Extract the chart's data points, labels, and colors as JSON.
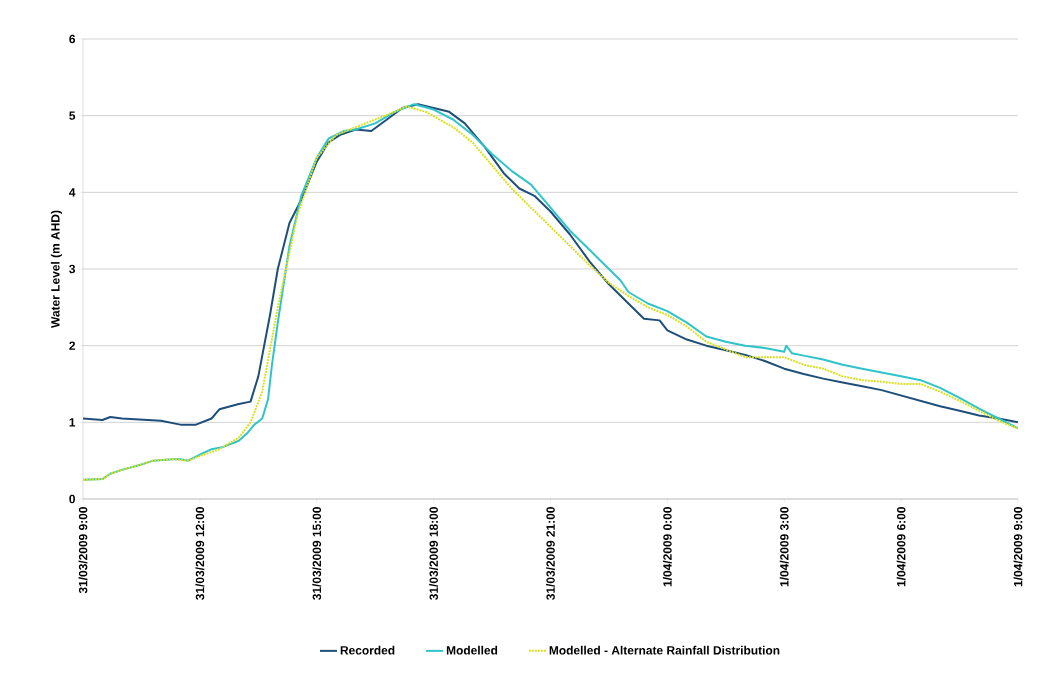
{
  "chart_data": {
    "type": "line",
    "ylabel": "Water Level (m AHD)",
    "xlim": [
      "2009-03-31T09:00",
      "2009-04-01T09:00"
    ],
    "xticks": [
      {
        "value": "2009-03-31T09:00",
        "label": "31/03/2009 9:00"
      },
      {
        "value": "2009-03-31T12:00",
        "label": "31/03/2009 12:00"
      },
      {
        "value": "2009-03-31T15:00",
        "label": "31/03/2009 15:00"
      },
      {
        "value": "2009-03-31T18:00",
        "label": "31/03/2009 18:00"
      },
      {
        "value": "2009-03-31T21:00",
        "label": "31/03/2009 21:00"
      },
      {
        "value": "2009-04-01T00:00",
        "label": "1/04/2009 0:00"
      },
      {
        "value": "2009-04-01T03:00",
        "label": "1/04/2009 3:00"
      },
      {
        "value": "2009-04-01T06:00",
        "label": "1/04/2009 6:00"
      },
      {
        "value": "2009-04-01T09:00",
        "label": "1/04/2009 9:00"
      }
    ],
    "ylim": [
      0,
      6
    ],
    "yticks": [
      0,
      1,
      2,
      3,
      4,
      5,
      6
    ],
    "grid": "y",
    "legend": "bottom",
    "series": [
      {
        "name": "Recorded",
        "color": "#1f4e79",
        "line_style": "solid",
        "x": [
          "2009-03-31T09:00",
          "2009-03-31T09:30",
          "2009-03-31T09:42",
          "2009-03-31T10:00",
          "2009-03-31T11:00",
          "2009-03-31T11:30",
          "2009-03-31T11:54",
          "2009-03-31T12:18",
          "2009-03-31T12:30",
          "2009-03-31T13:00",
          "2009-03-31T13:18",
          "2009-03-31T13:30",
          "2009-03-31T13:48",
          "2009-03-31T14:00",
          "2009-03-31T14:18",
          "2009-03-31T14:36",
          "2009-03-31T15:00",
          "2009-03-31T15:18",
          "2009-03-31T15:36",
          "2009-03-31T16:00",
          "2009-03-31T16:24",
          "2009-03-31T16:48",
          "2009-03-31T17:12",
          "2009-03-31T17:36",
          "2009-03-31T18:00",
          "2009-03-31T18:24",
          "2009-03-31T18:48",
          "2009-03-31T19:18",
          "2009-03-31T19:48",
          "2009-03-31T20:12",
          "2009-03-31T20:36",
          "2009-03-31T21:00",
          "2009-03-31T21:30",
          "2009-03-31T22:00",
          "2009-03-31T22:30",
          "2009-03-31T23:00",
          "2009-03-31T23:24",
          "2009-03-31T23:48",
          "2009-04-01T00:00",
          "2009-04-01T00:30",
          "2009-04-01T01:00",
          "2009-04-01T01:30",
          "2009-04-01T02:00",
          "2009-04-01T02:30",
          "2009-04-01T03:00",
          "2009-04-01T03:30",
          "2009-04-01T04:00",
          "2009-04-01T04:30",
          "2009-04-01T05:00",
          "2009-04-01T05:30",
          "2009-04-01T06:00",
          "2009-04-01T06:30",
          "2009-04-01T07:00",
          "2009-04-01T07:30",
          "2009-04-01T08:00",
          "2009-04-01T08:30",
          "2009-04-01T09:00"
        ],
        "values": [
          1.05,
          1.03,
          1.07,
          1.05,
          1.02,
          0.97,
          0.97,
          1.05,
          1.17,
          1.24,
          1.27,
          1.6,
          2.4,
          3.0,
          3.6,
          3.9,
          4.4,
          4.65,
          4.75,
          4.82,
          4.8,
          4.95,
          5.1,
          5.15,
          5.1,
          5.05,
          4.9,
          4.6,
          4.25,
          4.05,
          3.95,
          3.75,
          3.45,
          3.1,
          2.8,
          2.55,
          2.35,
          2.33,
          2.2,
          2.08,
          2.0,
          1.94,
          1.88,
          1.8,
          1.7,
          1.63,
          1.57,
          1.52,
          1.47,
          1.42,
          1.35,
          1.28,
          1.21,
          1.15,
          1.09,
          1.05,
          1.0
        ]
      },
      {
        "name": "Modelled",
        "color": "#2ec4c9",
        "line_style": "solid",
        "x": [
          "2009-03-31T09:00",
          "2009-03-31T09:30",
          "2009-03-31T09:42",
          "2009-03-31T10:00",
          "2009-03-31T10:30",
          "2009-03-31T10:48",
          "2009-03-31T11:18",
          "2009-03-31T11:30",
          "2009-03-31T11:42",
          "2009-03-31T12:00",
          "2009-03-31T12:18",
          "2009-03-31T12:36",
          "2009-03-31T13:00",
          "2009-03-31T13:12",
          "2009-03-31T13:24",
          "2009-03-31T13:36",
          "2009-03-31T13:45",
          "2009-03-31T13:51",
          "2009-03-31T14:00",
          "2009-03-31T14:18",
          "2009-03-31T14:36",
          "2009-03-31T15:00",
          "2009-03-31T15:18",
          "2009-03-31T15:42",
          "2009-03-31T16:00",
          "2009-03-31T16:30",
          "2009-03-31T17:00",
          "2009-03-31T17:30",
          "2009-03-31T18:00",
          "2009-03-31T18:30",
          "2009-03-31T19:00",
          "2009-03-31T19:30",
          "2009-03-31T20:00",
          "2009-03-31T20:30",
          "2009-03-31T21:00",
          "2009-03-31T21:30",
          "2009-03-31T22:00",
          "2009-03-31T22:30",
          "2009-03-31T22:48",
          "2009-03-31T23:00",
          "2009-03-31T23:30",
          "2009-04-01T00:00",
          "2009-04-01T00:30",
          "2009-04-01T01:00",
          "2009-04-01T01:30",
          "2009-04-01T02:00",
          "2009-04-01T02:30",
          "2009-04-01T03:00",
          "2009-04-01T03:03",
          "2009-04-01T03:12",
          "2009-04-01T03:30",
          "2009-04-01T04:00",
          "2009-04-01T04:30",
          "2009-04-01T05:00",
          "2009-04-01T05:30",
          "2009-04-01T06:00",
          "2009-04-01T06:30",
          "2009-04-01T07:00",
          "2009-04-01T07:30",
          "2009-04-01T08:00",
          "2009-04-01T08:30",
          "2009-04-01T09:00"
        ],
        "values": [
          0.25,
          0.26,
          0.33,
          0.38,
          0.45,
          0.5,
          0.52,
          0.52,
          0.5,
          0.58,
          0.65,
          0.68,
          0.76,
          0.85,
          0.97,
          1.05,
          1.3,
          1.75,
          2.3,
          3.3,
          3.95,
          4.45,
          4.7,
          4.8,
          4.82,
          4.9,
          5.05,
          5.15,
          5.08,
          4.95,
          4.75,
          4.5,
          4.28,
          4.1,
          3.8,
          3.5,
          3.25,
          3.0,
          2.85,
          2.7,
          2.55,
          2.45,
          2.3,
          2.12,
          2.05,
          2.0,
          1.97,
          1.92,
          2.0,
          1.9,
          1.87,
          1.82,
          1.75,
          1.7,
          1.65,
          1.6,
          1.55,
          1.45,
          1.32,
          1.18,
          1.05,
          0.92
        ]
      },
      {
        "name": "Modelled - Alternate Rainfall Distribution",
        "color": "#d9e021",
        "line_style": "dotted",
        "x": [
          "2009-03-31T09:00",
          "2009-03-31T09:30",
          "2009-03-31T09:42",
          "2009-03-31T10:00",
          "2009-03-31T10:30",
          "2009-03-31T10:48",
          "2009-03-31T11:18",
          "2009-03-31T11:42",
          "2009-03-31T12:00",
          "2009-03-31T12:30",
          "2009-03-31T13:00",
          "2009-03-31T13:18",
          "2009-03-31T13:36",
          "2009-03-31T14:00",
          "2009-03-31T14:30",
          "2009-03-31T15:00",
          "2009-03-31T15:30",
          "2009-03-31T16:00",
          "2009-03-31T16:30",
          "2009-03-31T17:00",
          "2009-03-31T17:18",
          "2009-03-31T17:48",
          "2009-03-31T18:30",
          "2009-03-31T19:00",
          "2009-03-31T19:30",
          "2009-03-31T20:00",
          "2009-03-31T20:30",
          "2009-03-31T21:00",
          "2009-03-31T21:30",
          "2009-03-31T22:00",
          "2009-03-31T22:30",
          "2009-03-31T23:00",
          "2009-03-31T23:30",
          "2009-04-01T00:00",
          "2009-04-01T00:30",
          "2009-04-01T01:00",
          "2009-04-01T01:30",
          "2009-04-01T02:00",
          "2009-04-01T02:30",
          "2009-04-01T03:00",
          "2009-04-01T03:30",
          "2009-04-01T04:00",
          "2009-04-01T04:30",
          "2009-04-01T05:00",
          "2009-04-01T05:30",
          "2009-04-01T06:00",
          "2009-04-01T06:30",
          "2009-04-01T07:00",
          "2009-04-01T07:30",
          "2009-04-01T08:00",
          "2009-04-01T08:30",
          "2009-04-01T09:00"
        ],
        "values": [
          0.25,
          0.26,
          0.33,
          0.38,
          0.45,
          0.5,
          0.52,
          0.5,
          0.56,
          0.65,
          0.8,
          1.0,
          1.4,
          2.5,
          3.7,
          4.45,
          4.75,
          4.85,
          4.95,
          5.05,
          5.12,
          5.05,
          4.85,
          4.65,
          4.35,
          4.05,
          3.8,
          3.55,
          3.3,
          3.05,
          2.82,
          2.65,
          2.5,
          2.4,
          2.25,
          2.05,
          1.95,
          1.85,
          1.85,
          1.85,
          1.75,
          1.7,
          1.6,
          1.55,
          1.53,
          1.5,
          1.5,
          1.4,
          1.28,
          1.15,
          1.02,
          0.92
        ]
      }
    ]
  }
}
